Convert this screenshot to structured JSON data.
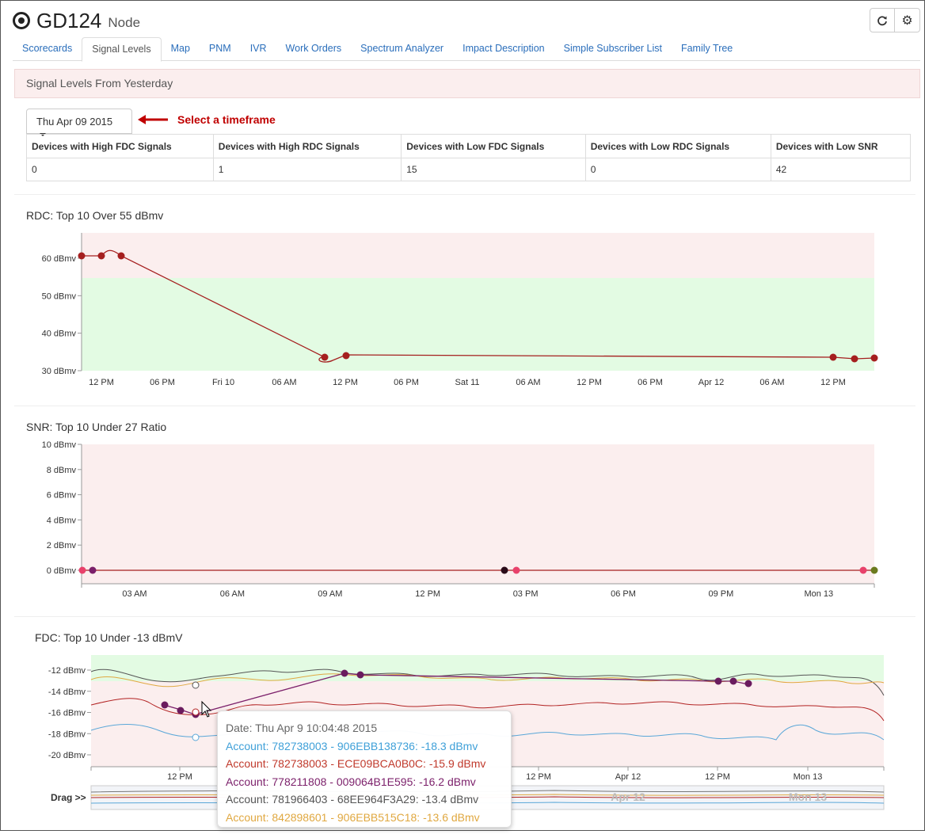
{
  "header": {
    "title": "GD124",
    "subtitle": "Node"
  },
  "icons": {
    "title_icon": "radio-button-icon",
    "refresh": "refresh-icon",
    "settings": "gear-icon"
  },
  "tabs": [
    {
      "label": "Scorecards"
    },
    {
      "label": "Signal Levels",
      "active": true
    },
    {
      "label": "Map"
    },
    {
      "label": "PNM"
    },
    {
      "label": "IVR"
    },
    {
      "label": "Work Orders"
    },
    {
      "label": "Spectrum Analyzer"
    },
    {
      "label": "Impact Description"
    },
    {
      "label": "Simple Subscriber List"
    },
    {
      "label": "Family Tree"
    }
  ],
  "panel": {
    "title": "Signal Levels From Yesterday"
  },
  "timeframe": {
    "selected": "Thu Apr 09 2015",
    "hint": "Select a timeframe"
  },
  "stats": {
    "headers": [
      "Devices with High FDC Signals",
      "Devices with High RDC Signals",
      "Devices with Low FDC Signals",
      "Devices with Low RDC Signals",
      "Devices with Low SNR"
    ],
    "values": [
      "0",
      "1",
      "15",
      "0",
      "42"
    ]
  },
  "colors": {
    "alert_band": "#fbeeee",
    "ok_band": "#e3fbe3",
    "accent": "#c00000",
    "link": "#2a6ebb"
  },
  "chart_data": [
    {
      "type": "line",
      "title": "RDC: Top 10 Over 55 dBmv",
      "y_ticks": [
        "60 dBmv",
        "50 dBmv",
        "40 dBmv",
        "30 dBmv"
      ],
      "ylim": [
        30,
        66
      ],
      "threshold": 55,
      "x_ticks": [
        "12 PM",
        "06 PM",
        "Fri 10",
        "06 AM",
        "12 PM",
        "06 PM",
        "Sat 11",
        "06 AM",
        "12 PM",
        "06 PM",
        "Apr 12",
        "06 AM",
        "12 PM"
      ],
      "series": [
        {
          "color": "#b22222",
          "x": [
            -1.0,
            0.0,
            1.0,
            11.8,
            12.0,
            35.0,
            36.0,
            37.0
          ],
          "y": [
            61,
            61,
            61,
            34,
            34.5,
            34,
            33.5,
            33.5
          ]
        }
      ]
    },
    {
      "type": "line",
      "title": "SNR: Top 10 Under 27 Ratio",
      "y_ticks": [
        "10 dBmv",
        "8 dBmv",
        "6 dBmv",
        "4 dBmv",
        "2 dBmv",
        "0 dBmv"
      ],
      "ylim": [
        0,
        10
      ],
      "x_ticks": [
        "03 AM",
        "06 AM",
        "09 AM",
        "12 PM",
        "03 PM",
        "06 PM",
        "09 PM",
        "Mon 13"
      ],
      "series": [
        {
          "color": "#b22222",
          "x": [
            0.0,
            24.3
          ],
          "y": [
            0,
            0
          ]
        }
      ],
      "points": [
        {
          "x": 0.0,
          "y": 0,
          "color": "#e8416b"
        },
        {
          "x": 0.6,
          "y": 0,
          "color": "#7b1f6a"
        },
        {
          "x": 13.0,
          "y": 0,
          "color": "#2a0a18"
        },
        {
          "x": 13.6,
          "y": 0,
          "color": "#e8416b"
        },
        {
          "x": 23.7,
          "y": 0,
          "color": "#e8416b"
        },
        {
          "x": 24.3,
          "y": 0,
          "color": "#6b7a1e"
        }
      ]
    },
    {
      "type": "line",
      "title": "FDC: Top 10 Under -13 dBmV",
      "y_ticks": [
        "-12 dBmv",
        "-14 dBmv",
        "-16 dBmv",
        "-18 dBmv",
        "-20 dBmv"
      ],
      "ylim": [
        -21,
        -11.5
      ],
      "threshold": -13,
      "x_ticks": [
        "12 PM",
        "12 PM",
        "Apr 12",
        "12 PM",
        "Mon 13"
      ],
      "navigator_ticks": [
        "Apr 12",
        "Mon 13"
      ],
      "navigator_label": "Drag >>",
      "series": [
        {
          "name": "Account: 782738003 - 906EBB138736",
          "color": "#5aa7d8"
        },
        {
          "name": "Account: 782738003 - ECE09BCA0B0C",
          "color": "#b22222"
        },
        {
          "name": "Account: 778211808 - 009064B1E595",
          "color": "#7b1f6a"
        },
        {
          "name": "Account: 781966403 - 68EE964F3A29",
          "color": "#555555"
        },
        {
          "name": "Account: 842898601 - 906EBB515C18",
          "color": "#e0a840"
        }
      ]
    }
  ],
  "tooltip": {
    "date": "Date: Thu Apr 9 10:04:48 2015",
    "rows": [
      {
        "text": "Account: 782738003 - 906EBB138736: -18.3 dBmv",
        "color": "#3fa0d8"
      },
      {
        "text": "Account: 782738003 - ECE09BCA0B0C: -15.9 dBmv",
        "color": "#c0392b"
      },
      {
        "text": "Account: 778211808 - 009064B1E595: -16.2 dBmv",
        "color": "#7b1f6a"
      },
      {
        "text": "Account: 781966403 - 68EE964F3A29: -13.4 dBmv",
        "color": "#555555"
      },
      {
        "text": "Account: 842898601 - 906EBB515C18: -13.6 dBmv",
        "color": "#e0a840"
      }
    ]
  }
}
